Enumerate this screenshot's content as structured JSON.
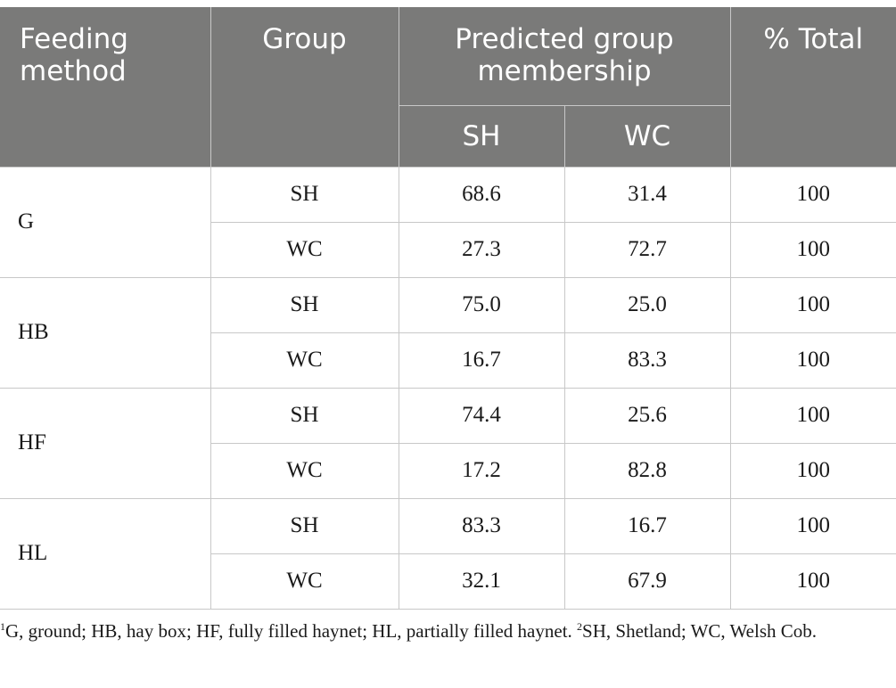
{
  "table": {
    "headers": {
      "feeding_method": "Feeding method",
      "group": "Group",
      "predicted": "Predicted group membership",
      "total": "% Total",
      "sub_sh": "SH",
      "sub_wc": "WC"
    },
    "methods": [
      {
        "name": "G",
        "rows": [
          {
            "group": "SH",
            "sh": "68.6",
            "wc": "31.4",
            "total": "100"
          },
          {
            "group": "WC",
            "sh": "27.3",
            "wc": "72.7",
            "total": "100"
          }
        ]
      },
      {
        "name": "HB",
        "rows": [
          {
            "group": "SH",
            "sh": "75.0",
            "wc": "25.0",
            "total": "100"
          },
          {
            "group": "WC",
            "sh": "16.7",
            "wc": "83.3",
            "total": "100"
          }
        ]
      },
      {
        "name": "HF",
        "rows": [
          {
            "group": "SH",
            "sh": "74.4",
            "wc": "25.6",
            "total": "100"
          },
          {
            "group": "WC",
            "sh": "17.2",
            "wc": "82.8",
            "total": "100"
          }
        ]
      },
      {
        "name": "HL",
        "rows": [
          {
            "group": "SH",
            "sh": "83.3",
            "wc": "16.7",
            "total": "100"
          },
          {
            "group": "WC",
            "sh": "32.1",
            "wc": "67.9",
            "total": "100"
          }
        ]
      }
    ]
  },
  "footnote": {
    "mark1": "1",
    "text1": "G, ground; HB, hay box; HF, fully filled haynet; HL, partially filled haynet. ",
    "mark2": "2",
    "text2": "SH, Shetland; WC, Welsh Cob."
  },
  "colors": {
    "header_bg": "#7a7a79",
    "header_text": "#ffffff",
    "grid": "#c8c8c8"
  }
}
